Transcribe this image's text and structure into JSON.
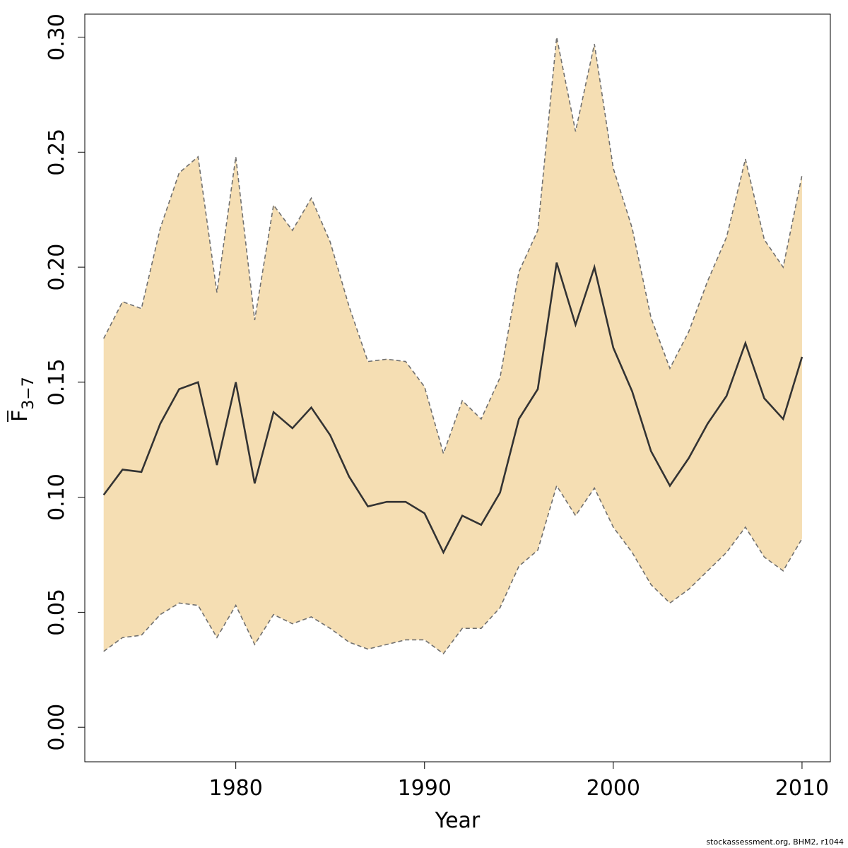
{
  "chart_data": {
    "type": "area",
    "xlabel": "Year",
    "ylabel_base": "F",
    "ylabel_sub": "3−7",
    "xlim": [
      1972,
      2011.5
    ],
    "ylim": [
      -0.015,
      0.31
    ],
    "xticks": [
      1980,
      1990,
      2000,
      2010
    ],
    "yticks": [
      0.0,
      0.05,
      0.1,
      0.15,
      0.2,
      0.25,
      0.3
    ],
    "ytick_labels": [
      "0.00",
      "0.05",
      "0.10",
      "0.15",
      "0.20",
      "0.25",
      "0.30"
    ],
    "band_color": "#F5DEB3",
    "line_color": "#333333",
    "bound_color": "#707070",
    "grid": false,
    "x": [
      1973,
      1974,
      1975,
      1976,
      1977,
      1978,
      1979,
      1980,
      1981,
      1982,
      1983,
      1984,
      1985,
      1986,
      1987,
      1988,
      1989,
      1990,
      1991,
      1992,
      1993,
      1994,
      1995,
      1996,
      1997,
      1998,
      1999,
      2000,
      2001,
      2002,
      2003,
      2004,
      2005,
      2006,
      2007,
      2008,
      2009,
      2010
    ],
    "series": [
      {
        "role": "median",
        "values": [
          0.101,
          0.112,
          0.111,
          0.132,
          0.147,
          0.15,
          0.114,
          0.15,
          0.106,
          0.137,
          0.13,
          0.139,
          0.127,
          0.109,
          0.096,
          0.098,
          0.098,
          0.093,
          0.076,
          0.092,
          0.088,
          0.102,
          0.134,
          0.147,
          0.202,
          0.175,
          0.2,
          0.165,
          0.146,
          0.12,
          0.105,
          0.117,
          0.132,
          0.144,
          0.167,
          0.143,
          0.134,
          0.161
        ]
      },
      {
        "role": "upper",
        "values": [
          0.169,
          0.185,
          0.182,
          0.217,
          0.241,
          0.248,
          0.189,
          0.248,
          0.177,
          0.227,
          0.216,
          0.23,
          0.211,
          0.183,
          0.159,
          0.16,
          0.159,
          0.148,
          0.119,
          0.142,
          0.134,
          0.152,
          0.198,
          0.216,
          0.3,
          0.259,
          0.297,
          0.243,
          0.217,
          0.178,
          0.156,
          0.172,
          0.194,
          0.213,
          0.247,
          0.212,
          0.2,
          0.24
        ]
      },
      {
        "role": "lower",
        "values": [
          0.033,
          0.039,
          0.04,
          0.049,
          0.054,
          0.053,
          0.039,
          0.053,
          0.036,
          0.049,
          0.045,
          0.048,
          0.043,
          0.037,
          0.034,
          0.036,
          0.038,
          0.038,
          0.032,
          0.043,
          0.043,
          0.052,
          0.07,
          0.077,
          0.105,
          0.092,
          0.104,
          0.087,
          0.076,
          0.062,
          0.054,
          0.06,
          0.068,
          0.076,
          0.087,
          0.074,
          0.068,
          0.082
        ]
      }
    ]
  },
  "footer": {
    "credit": "stockassessment.org, BHM2, r1044"
  }
}
